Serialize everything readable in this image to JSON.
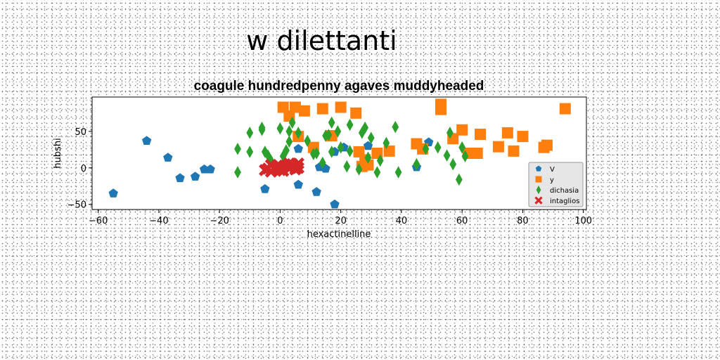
{
  "page": {
    "title": "w dilettanti"
  },
  "chart_data": {
    "type": "scatter",
    "title": "coagule hundredpenny agaves muddyheaded",
    "xlabel": "hexactinelline",
    "ylabel": "hubshi",
    "xlim": [
      -62,
      101
    ],
    "ylim": [
      -57,
      97
    ],
    "xticks": [
      -60,
      -40,
      -20,
      0,
      20,
      40,
      60,
      80,
      100
    ],
    "yticks": [
      -50,
      0,
      50
    ],
    "grid": false,
    "legend_position": "lower-right",
    "series": [
      {
        "name": "V",
        "color": "#1f77b4",
        "marker": "pentagon",
        "points": [
          [
            -55,
            -35
          ],
          [
            -44,
            37
          ],
          [
            -37,
            14
          ],
          [
            -33,
            -14
          ],
          [
            -28,
            -12
          ],
          [
            -25,
            -2
          ],
          [
            -23,
            -2
          ],
          [
            -5,
            -29
          ],
          [
            6,
            -23
          ],
          [
            6,
            26
          ],
          [
            12,
            -33
          ],
          [
            13,
            1
          ],
          [
            15,
            -1
          ],
          [
            18,
            -50
          ],
          [
            18,
            22
          ],
          [
            21,
            28
          ],
          [
            29,
            30
          ],
          [
            45,
            1
          ],
          [
            49,
            35
          ]
        ]
      },
      {
        "name": "y",
        "color": "#ff7f0e",
        "marker": "square",
        "points": [
          [
            1,
            83
          ],
          [
            3,
            71
          ],
          [
            5,
            83
          ],
          [
            6,
            43
          ],
          [
            8,
            78
          ],
          [
            11,
            28
          ],
          [
            14,
            81
          ],
          [
            17,
            44
          ],
          [
            20,
            83
          ],
          [
            25,
            75
          ],
          [
            26,
            22
          ],
          [
            27,
            2
          ],
          [
            28,
            11
          ],
          [
            29,
            4
          ],
          [
            32,
            20
          ],
          [
            36,
            23
          ],
          [
            45,
            33
          ],
          [
            47,
            26
          ],
          [
            53,
            80
          ],
          [
            53,
            87
          ],
          [
            57,
            40
          ],
          [
            60,
            52
          ],
          [
            62,
            20
          ],
          [
            65,
            20
          ],
          [
            66,
            46
          ],
          [
            72,
            29
          ],
          [
            75,
            48
          ],
          [
            77,
            23
          ],
          [
            80,
            43
          ],
          [
            87,
            28
          ],
          [
            88,
            31
          ],
          [
            94,
            81
          ]
        ]
      },
      {
        "name": "dichasia",
        "color": "#2ca02c",
        "marker": "diamond",
        "points": [
          [
            -14,
            26
          ],
          [
            -14,
            -6
          ],
          [
            -10,
            48
          ],
          [
            -10,
            22
          ],
          [
            -6,
            52
          ],
          [
            -6,
            55
          ],
          [
            -5,
            22
          ],
          [
            -4,
            17
          ],
          [
            -3,
            10
          ],
          [
            0,
            54
          ],
          [
            1,
            16
          ],
          [
            2,
            24
          ],
          [
            3,
            50
          ],
          [
            3,
            36
          ],
          [
            4,
            62
          ],
          [
            6,
            48
          ],
          [
            9,
            37
          ],
          [
            11,
            19
          ],
          [
            12,
            20
          ],
          [
            14,
            7
          ],
          [
            15,
            44
          ],
          [
            16,
            45
          ],
          [
            17,
            22
          ],
          [
            17,
            62
          ],
          [
            19,
            50
          ],
          [
            20,
            28
          ],
          [
            22,
            2
          ],
          [
            23,
            23
          ],
          [
            23,
            59
          ],
          [
            26,
            -2
          ],
          [
            27,
            48
          ],
          [
            28,
            55
          ],
          [
            29,
            14
          ],
          [
            30,
            41
          ],
          [
            32,
            -6
          ],
          [
            33,
            10
          ],
          [
            35,
            34
          ],
          [
            38,
            56
          ],
          [
            39,
            -6
          ],
          [
            45,
            5
          ],
          [
            48,
            26
          ],
          [
            52,
            28
          ],
          [
            55,
            17
          ],
          [
            56,
            48
          ],
          [
            57,
            5
          ],
          [
            59,
            -16
          ],
          [
            60,
            28
          ],
          [
            61,
            16
          ]
        ]
      },
      {
        "name": "intaglios",
        "color": "#d62728",
        "marker": "x",
        "points": [
          [
            -5,
            -3
          ],
          [
            -4,
            -1
          ],
          [
            -3,
            -5
          ],
          [
            -2,
            0
          ],
          [
            -1,
            -2
          ],
          [
            0,
            2
          ],
          [
            0,
            -3
          ],
          [
            1,
            1
          ],
          [
            2,
            3
          ],
          [
            3,
            -1
          ],
          [
            4,
            5
          ],
          [
            5,
            2
          ],
          [
            6,
            6
          ],
          [
            6,
            0
          ],
          [
            -3,
            4
          ],
          [
            1,
            -4
          ],
          [
            3,
            6
          ],
          [
            5,
            -2
          ],
          [
            -1,
            3
          ]
        ]
      }
    ]
  }
}
